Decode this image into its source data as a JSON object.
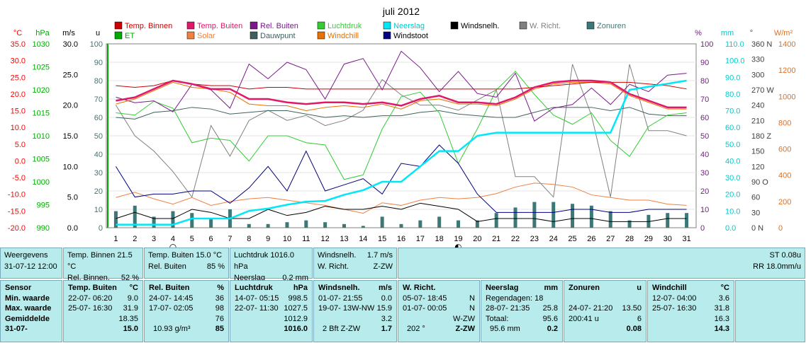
{
  "chart_data": {
    "type": "line",
    "title": "juli 2012",
    "x": [
      1,
      2,
      3,
      4,
      5,
      6,
      7,
      8,
      9,
      10,
      11,
      12,
      13,
      14,
      15,
      16,
      17,
      18,
      19,
      20,
      21,
      22,
      23,
      24,
      25,
      26,
      27,
      28,
      29,
      30,
      31
    ],
    "legend": [
      {
        "name": "Temp. Binnen",
        "color": "#cc0000"
      },
      {
        "name": "Temp. Buiten",
        "color": "#e0186a"
      },
      {
        "name": "Rel. Buiten",
        "color": "#7a1a8a"
      },
      {
        "name": "Luchtdruk",
        "color": "#33cc33"
      },
      {
        "name": "Neerslag",
        "color": "#00e8f8"
      },
      {
        "name": "Windsnelh.",
        "color": "#000000"
      },
      {
        "name": "W. Richt.",
        "color": "#808080"
      },
      {
        "name": "Zonuren",
        "color": "#3d7878"
      },
      {
        "name": "ET",
        "color": "#00aa00"
      },
      {
        "name": "Solar",
        "color": "#f08040"
      },
      {
        "name": "Dauwpunt",
        "color": "#406060"
      },
      {
        "name": "Windchill",
        "color": "#e87000"
      },
      {
        "name": "Windstoot",
        "color": "#000080"
      }
    ],
    "axes": {
      "temp": {
        "label": "°C",
        "ticks": [
          "35.0",
          "30.0",
          "25.0",
          "20.0",
          "15.0",
          "10.0",
          "5.0",
          "0.0",
          "-5.0",
          "-10.0",
          "-15.0",
          "-20.0"
        ],
        "color": "#ff0000"
      },
      "press": {
        "label": "hPa",
        "ticks": [
          "1030",
          "1025",
          "1020",
          "1015",
          "1010",
          "1005",
          "1000",
          "995",
          "990"
        ],
        "color": "#00aa00"
      },
      "wind": {
        "label": "m/s",
        "ticks": [
          "30.0",
          "25.0",
          "20.0",
          "15.0",
          "10.0",
          "5.0",
          "0.0"
        ],
        "color": "#000000"
      },
      "sun": {
        "label": "u",
        "ticks": [
          "100",
          "90",
          "80",
          "70",
          "60",
          "50",
          "40",
          "30",
          "20",
          "10",
          "0"
        ],
        "color": "#3d7878"
      },
      "hum": {
        "label": "%",
        "ticks": [
          "100",
          "90",
          "80",
          "70",
          "60",
          "50",
          "40",
          "30",
          "20",
          "10",
          "0"
        ],
        "color": "#7a1a8a"
      },
      "rain": {
        "label": "mm",
        "ticks": [
          "110.0",
          "100.0",
          "90.0",
          "80.0",
          "70.0",
          "60.0",
          "50.0",
          "40.0",
          "30.0",
          "20.0",
          "10.0",
          "0.0"
        ],
        "color": "#00cccc"
      },
      "dir": {
        "label": "°",
        "ticks": [
          "360 N",
          "330",
          "300",
          "270 W",
          "240",
          "210",
          "180 Z",
          "150",
          "120",
          "90 O",
          "60",
          "30",
          "0 N"
        ],
        "color": "#404040"
      },
      "solar": {
        "label": "W/m²",
        "ticks": [
          "1400",
          "1200",
          "1000",
          "800",
          "600",
          "400",
          "200",
          "0"
        ],
        "color": "#e07020"
      }
    },
    "series": [
      {
        "name": "Temp. Binnen",
        "unit": "°C",
        "values": [
          22.5,
          22.0,
          22.5,
          24.0,
          23.0,
          22.5,
          22.5,
          21.5,
          22.0,
          22.0,
          21.5,
          21.5,
          21.5,
          21.5,
          21.5,
          21.5,
          21.5,
          21.5,
          21.5,
          21.5,
          21.5,
          21.5,
          22.0,
          22.5,
          23.0,
          23.5,
          23.5,
          23.5,
          23.0,
          22.5,
          21.5
        ]
      },
      {
        "name": "Temp. Buiten",
        "unit": "°C",
        "values": [
          18.0,
          19.0,
          21.5,
          24.0,
          23.0,
          21.5,
          21.5,
          18.5,
          18.5,
          17.5,
          17.0,
          17.5,
          17.5,
          17.0,
          17.5,
          16.5,
          18.5,
          19.5,
          17.5,
          17.5,
          17.0,
          19.0,
          22.0,
          23.5,
          24.0,
          24.0,
          23.5,
          20.0,
          18.0,
          16.0,
          16.0
        ]
      },
      {
        "name": "Rel. Buiten",
        "unit": "%",
        "values": [
          71,
          68,
          69,
          63,
          78,
          75,
          65,
          89,
          81,
          90,
          86,
          70,
          89,
          92,
          75,
          96,
          87,
          74,
          85,
          73,
          71,
          84,
          58,
          65,
          67,
          76,
          67,
          78,
          74,
          83,
          84
        ]
      },
      {
        "name": "Luchtdruk",
        "unit": "hPa",
        "values": [
          1015.0,
          1014.5,
          1017.5,
          1016.0,
          1008.5,
          1009.5,
          1009.0,
          1004.5,
          1010.0,
          1010.0,
          1008.5,
          1008.0,
          1000.5,
          1001.5,
          1011.5,
          1018.5,
          1019.5,
          1015.0,
          1004.0,
          1011.5,
          1020.0,
          1024.0,
          1019.0,
          1014.5,
          1012.5,
          1015.0,
          1009.0,
          1005.5,
          1012.0,
          1014.5,
          1015.0
        ]
      },
      {
        "name": "Neerslag",
        "unit": "mm",
        "values": [
          2.0,
          2.0,
          2.0,
          2.0,
          6.0,
          6.0,
          6.0,
          11.0,
          12.5,
          15.0,
          17.0,
          17.5,
          21.5,
          24.5,
          30.0,
          30.0,
          40.0,
          50.0,
          50.0,
          60.0,
          62.0,
          62.0,
          62.0,
          62.0,
          62.0,
          62.0,
          62.0,
          90.0,
          92.0,
          94.0,
          96.0
        ]
      },
      {
        "name": "Windsnelh.",
        "unit": "m/s",
        "values": [
          1.5,
          2.5,
          1.5,
          1.5,
          3.0,
          2.5,
          1.5,
          1.5,
          3.0,
          2.0,
          2.5,
          3.5,
          3.0,
          3.0,
          3.5,
          3.0,
          4.0,
          3.5,
          3.0,
          1.0,
          1.5,
          1.5,
          1.5,
          1.0,
          1.5,
          1.5,
          1.0,
          1.0,
          1.0,
          1.5,
          1.5
        ]
      },
      {
        "name": "Windstoot",
        "unit": "m/s",
        "values": [
          10.0,
          5.0,
          5.5,
          5.5,
          6.0,
          6.0,
          4.0,
          6.5,
          10.0,
          6.0,
          12.5,
          6.0,
          7.0,
          8.0,
          5.5,
          10.5,
          10.0,
          13.5,
          10.5,
          5.5,
          2.5,
          2.5,
          2.5,
          2.5,
          3.0,
          3.0,
          2.5,
          2.5,
          3.0,
          3.0,
          3.0
        ]
      },
      {
        "name": "W. Richt.",
        "unit": "°",
        "values": [
          240,
          180,
          150,
          110,
          60,
          200,
          140,
          210,
          230,
          210,
          220,
          200,
          210,
          230,
          290,
          260,
          240,
          240,
          230,
          250,
          270,
          100,
          100,
          60,
          320,
          220,
          60,
          320,
          190,
          190,
          180
        ]
      },
      {
        "name": "Dauwpunt",
        "unit": "°C",
        "values": [
          13.0,
          12.5,
          14.5,
          15.0,
          16.0,
          15.5,
          14.0,
          14.5,
          15.0,
          15.0,
          14.0,
          13.0,
          13.5,
          13.0,
          13.5,
          13.5,
          14.5,
          15.0,
          14.0,
          13.5,
          13.0,
          13.0,
          14.5,
          16.0,
          16.0,
          16.0,
          15.0,
          16.0,
          14.0,
          13.5,
          13.5
        ]
      },
      {
        "name": "Windchill",
        "unit": "°C",
        "values": [
          17.0,
          18.5,
          21.0,
          23.5,
          22.0,
          21.5,
          20.5,
          17.0,
          16.5,
          16.5,
          15.0,
          16.0,
          16.5,
          16.0,
          17.0,
          15.5,
          18.0,
          18.5,
          17.0,
          17.0,
          16.5,
          18.5,
          21.5,
          23.0,
          23.5,
          23.5,
          23.0,
          19.5,
          17.5,
          15.5,
          15.5
        ]
      },
      {
        "name": "Solar",
        "unit": "W/m²",
        "values": [
          230,
          270,
          220,
          180,
          230,
          170,
          200,
          220,
          230,
          210,
          190,
          170,
          140,
          110,
          190,
          170,
          210,
          230,
          220,
          230,
          260,
          310,
          340,
          330,
          310,
          250,
          230,
          210,
          210,
          180,
          170
        ]
      },
      {
        "name": "Zonuren",
        "unit": "u",
        "values": [
          9,
          12,
          6,
          9,
          8,
          5,
          10,
          2,
          2,
          3,
          4,
          3,
          2,
          1,
          6,
          2,
          4,
          6,
          4,
          4,
          8,
          11,
          14,
          14,
          13,
          12,
          9,
          4,
          7,
          8,
          8
        ]
      },
      {
        "name": "ET",
        "unit": "",
        "values": [
          100,
          0,
          0,
          0,
          0,
          0,
          0,
          0,
          0,
          0,
          0,
          0,
          0,
          0,
          0,
          0,
          0,
          0,
          0,
          0,
          0,
          0,
          0,
          0,
          0,
          0,
          0,
          0,
          0,
          0,
          0
        ]
      }
    ],
    "markers": [
      {
        "day": 4,
        "symbol": "○"
      },
      {
        "day": 19,
        "symbol": "◐"
      }
    ]
  },
  "current": {
    "weergegevens_label": "Weergevens",
    "datetime": "31-07-12 12:00",
    "temp_binnen": "Temp. Binnen 21.5 °C",
    "rel_binnen_label": "Rel. Binnen.",
    "rel_binnen_val": "52 %",
    "temp_buiten": "Temp. Buiten  15.0 °C",
    "rel_buiten_label": "Rel. Buiten",
    "rel_buiten_val": "85 %",
    "luchtdruk": "Luchtdruk 1016.0 hPa",
    "neerslag_label": "Neerslag",
    "neerslag_val": "0.2 mm",
    "windsnelh_label": "Windsnelh.",
    "windsnelh_val": "1.7 m/s",
    "wrichting_label": "W. Richt.",
    "wrichting_val": "Z-ZW",
    "st": "ST 0.08u",
    "rr": "RR 18.0mm/u"
  },
  "stats": {
    "labels": {
      "sensor": "Sensor",
      "min": "Min. waarde",
      "max": "Max. waarde",
      "avg": "Gemiddelde",
      "date": "31-07-"
    },
    "temp_buiten": {
      "title": "Temp. Buiten",
      "unit": "°C",
      "min_t": "22-07-  06:20",
      "min_v": "9.0",
      "max_t": "25-07-  16:30",
      "max_v": "31.9",
      "avg": "18.35",
      "cur": "15.0"
    },
    "rel_buiten": {
      "title": "Rel. Buiten",
      "unit": "%",
      "min_t": "24-07-  14:45",
      "min_v": "36",
      "max_t": "17-07-  02:05",
      "max_v": "98",
      "avg": "76",
      "extra": "10.93 g/m³",
      "cur": "85"
    },
    "luchtdruk": {
      "title": "Luchtdruk",
      "unit": "hPa",
      "min_t": "14-07-  05:15",
      "min_v": "998.5",
      "max_t": "22-07-  11:30",
      "max_v": "1027.5",
      "avg": "1012.9",
      "cur": "1016.0"
    },
    "windsnelh": {
      "title": "Windsnelh.",
      "unit": "m/s",
      "min_t": "01-07-  21:55",
      "min_v": "0.0",
      "max_t": "19-07-  13W-NW",
      "max_v": "15.9",
      "avg": "3.2",
      "extra": "2 Bft Z-ZW",
      "cur": "1.7"
    },
    "wrichting": {
      "title": "W. Richt.",
      "min_t": "05-07-  18:45",
      "min_v": "N",
      "max_t": "01-07-  00:05",
      "max_v": "N",
      "avg": "W-ZW",
      "extra": "202 °",
      "cur": "Z-ZW"
    },
    "neerslag": {
      "title": "Neerslag",
      "unit": "mm",
      "l1": "Regendagen: 18",
      "l2_t": "28-07-  21:35",
      "l2_v": "25.8",
      "l3_t": "Totaal:",
      "l3_v": "95.6",
      "extra": "95.6 mm",
      "cur": "0.2"
    },
    "zonuren": {
      "title": "Zonuren",
      "unit": "u",
      "l2_t": "24-07-  21:20",
      "l2_v": "13.50",
      "l3_t": "200:41 u",
      "l3_v": "6",
      "cur": "0.08"
    },
    "windchill": {
      "title": "Windchill",
      "unit": "°C",
      "min_t": "12-07-  04:00",
      "min_v": "3.6",
      "max_t": "25-07-  16:30",
      "max_v": "31.8",
      "avg": "16.3",
      "cur": "14.3"
    }
  }
}
